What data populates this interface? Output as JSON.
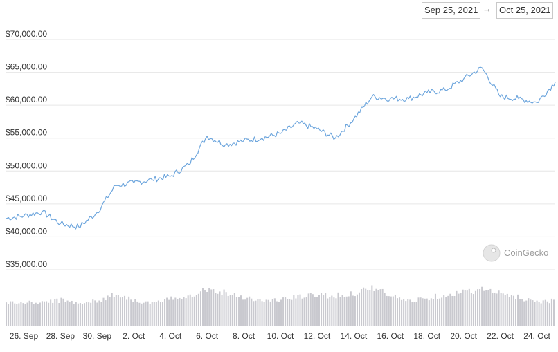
{
  "range": {
    "start": "Sep 25, 2021",
    "arrow": "→",
    "end": "Oct 25, 2021"
  },
  "watermark": "CoinGecko",
  "colors": {
    "line": "#6ea6dd",
    "volume": "#c9c9cf",
    "grid": "#e6e6e6"
  },
  "chart_data": {
    "type": "line",
    "x_tick_labels": [
      "26. Sep",
      "28. Sep",
      "30. Sep",
      "2. Oct",
      "4. Oct",
      "6. Oct",
      "8. Oct",
      "10. Oct",
      "12. Oct",
      "14. Oct",
      "16. Oct",
      "18. Oct",
      "20. Oct",
      "22. Oct",
      "24. Oct"
    ],
    "y_tick_labels": [
      "$35,000.00",
      "$40,000.00",
      "$45,000.00",
      "$50,000.00",
      "$55,000.00",
      "$60,000.00",
      "$65,000.00",
      "$70,000.00"
    ],
    "ylim": [
      35000,
      70000
    ],
    "xlim": [
      "2021-09-25",
      "2021-10-25"
    ],
    "grid": true,
    "series": [
      {
        "x": [
          "2021-09-25",
          "2021-09-26",
          "2021-09-27",
          "2021-09-28",
          "2021-09-29",
          "2021-09-30",
          "2021-10-01",
          "2021-10-02",
          "2021-10-03",
          "2021-10-04",
          "2021-10-05",
          "2021-10-06",
          "2021-10-07",
          "2021-10-08",
          "2021-10-09",
          "2021-10-10",
          "2021-10-11",
          "2021-10-12",
          "2021-10-13",
          "2021-10-14",
          "2021-10-15",
          "2021-10-16",
          "2021-10-17",
          "2021-10-18",
          "2021-10-19",
          "2021-10-20",
          "2021-10-21",
          "2021-10-22",
          "2021-10-23",
          "2021-10-24",
          "2021-10-25"
        ],
        "y": [
          42800,
          43200,
          43800,
          42000,
          41500,
          43700,
          47800,
          48200,
          48700,
          49200,
          51000,
          55300,
          54000,
          54600,
          55000,
          55700,
          57300,
          56400,
          55000,
          57900,
          61300,
          61000,
          61000,
          61900,
          62300,
          64000,
          65700,
          61300,
          61000,
          60400,
          63500
        ]
      }
    ],
    "volume": [
      0.42,
      0.41,
      0.43,
      0.46,
      0.42,
      0.44,
      0.58,
      0.46,
      0.4,
      0.48,
      0.55,
      0.66,
      0.6,
      0.52,
      0.45,
      0.47,
      0.52,
      0.56,
      0.54,
      0.58,
      0.7,
      0.55,
      0.45,
      0.5,
      0.56,
      0.6,
      0.66,
      0.58,
      0.52,
      0.44,
      0.46
    ]
  }
}
